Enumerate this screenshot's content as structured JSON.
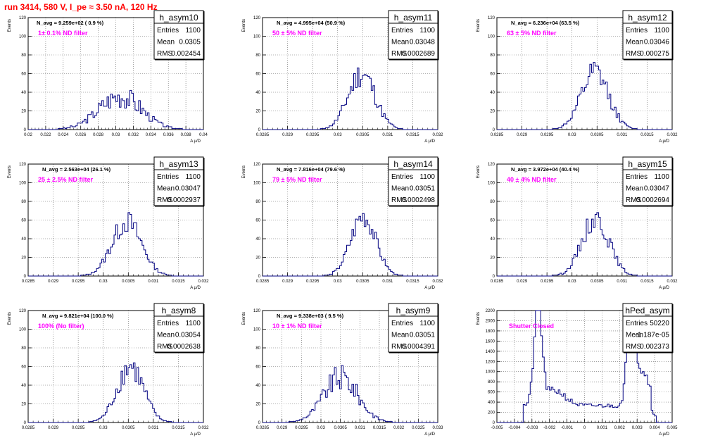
{
  "page": {
    "title": "run 3414,   580 V, I_pe ≈ 3.50 nA, 120 Hz",
    "title_color": "#ff0000",
    "ylabel": "Events",
    "xlabel": "A μ/D",
    "hist_color": "#000080",
    "note_color": "#ff00ff",
    "stats_labels": [
      "Entries",
      "Mean",
      "RMS"
    ]
  },
  "chart_data": [
    {
      "type": "histogram",
      "name": "h_asym10",
      "navg": "N_avg = 9.259e+02 ( 0.9 %)",
      "note": "1± 0.1% ND filter",
      "stats": [
        "1100",
        "0.0305",
        "0.002454"
      ],
      "xlim": [
        0.02,
        0.04
      ],
      "xticks": [
        0.02,
        0.022,
        0.024,
        0.026,
        0.028,
        0.03,
        0.032,
        0.034,
        0.036,
        0.038,
        0.04
      ],
      "xticklabels": [
        "0.02",
        "0.022",
        "0.024",
        "0.026",
        "0.028",
        "0.03",
        "0.032",
        "0.034",
        "0.036",
        "0.038",
        "0.04"
      ],
      "ylim": [
        0,
        120
      ],
      "yticks": [
        0,
        20,
        40,
        60,
        80,
        100,
        120
      ],
      "dist": {
        "mean": 0.0305,
        "rms": 0.002454,
        "peak": 36,
        "seed": 3,
        "noise": 0.35
      }
    },
    {
      "type": "histogram",
      "name": "h_asym11",
      "navg": "N_avg = 4.995e+04 (50.9 %)",
      "note": "50 ± 5% ND filter",
      "stats": [
        "1100",
        "0.03048",
        "0.0002689"
      ],
      "xlim": [
        0.0285,
        0.032
      ],
      "xticks": [
        0.0285,
        0.029,
        0.0295,
        0.03,
        0.0305,
        0.031,
        0.0315,
        0.032
      ],
      "xticklabels": [
        "0.0285",
        "0.029",
        "0.0295",
        "0.03",
        "0.0305",
        "0.031",
        "0.0315",
        "0.032"
      ],
      "ylim": [
        0,
        120
      ],
      "yticks": [
        0,
        20,
        40,
        60,
        80,
        100,
        120
      ],
      "dist": {
        "mean": 0.03048,
        "rms": 0.0002689,
        "peak": 60,
        "seed": 11,
        "noise": 0.25
      }
    },
    {
      "type": "histogram",
      "name": "h_asym12",
      "navg": "N_avg = 6.236e+04 (63.5 %)",
      "note": "63 ± 5% ND filter",
      "stats": [
        "1100",
        "0.03046",
        "0.000275"
      ],
      "xlim": [
        0.0285,
        0.032
      ],
      "xticks": [
        0.0285,
        0.029,
        0.0295,
        0.03,
        0.0305,
        0.031,
        0.0315,
        0.032
      ],
      "xticklabels": [
        "0.0285",
        "0.029",
        "0.0295",
        "0.03",
        "0.0305",
        "0.031",
        "0.0315",
        "0.032"
      ],
      "ylim": [
        0,
        120
      ],
      "yticks": [
        0,
        20,
        40,
        60,
        80,
        100,
        120
      ],
      "dist": {
        "mean": 0.03046,
        "rms": 0.000275,
        "peak": 60,
        "seed": 12,
        "noise": 0.25
      }
    },
    {
      "type": "histogram",
      "name": "h_asym13",
      "navg": "N_avg = 2.563e+04 (26.1 %)",
      "note": "25 ± 2.5% ND filter",
      "stats": [
        "1100",
        "0.03047",
        "0.0002937"
      ],
      "xlim": [
        0.0285,
        0.032
      ],
      "xticks": [
        0.0285,
        0.029,
        0.0295,
        0.03,
        0.0305,
        0.031,
        0.0315,
        0.032
      ],
      "xticklabels": [
        "0.0285",
        "0.029",
        "0.0295",
        "0.03",
        "0.0305",
        "0.031",
        "0.0315",
        "0.032"
      ],
      "ylim": [
        0,
        120
      ],
      "yticks": [
        0,
        20,
        40,
        60,
        80,
        100,
        120
      ],
      "dist": {
        "mean": 0.03047,
        "rms": 0.0002937,
        "peak": 58,
        "seed": 13,
        "noise": 0.22
      }
    },
    {
      "type": "histogram",
      "name": "h_asym14",
      "navg": "N_avg = 7.816e+04 (79.6 %)",
      "note": "79 ± 5% ND filter",
      "stats": [
        "1100",
        "0.03051",
        "0.0002498"
      ],
      "xlim": [
        0.0285,
        0.032
      ],
      "xticks": [
        0.0285,
        0.029,
        0.0295,
        0.03,
        0.0305,
        0.031,
        0.0315,
        0.032
      ],
      "xticklabels": [
        "0.0285",
        "0.029",
        "0.0295",
        "0.03",
        "0.0305",
        "0.031",
        "0.0315",
        "0.032"
      ],
      "ylim": [
        0,
        120
      ],
      "yticks": [
        0,
        20,
        40,
        60,
        80,
        100,
        120
      ],
      "dist": {
        "mean": 0.03051,
        "rms": 0.0002498,
        "peak": 64,
        "seed": 14,
        "noise": 0.2
      }
    },
    {
      "type": "histogram",
      "name": "h_asym15",
      "navg": "N_avg = 3.972e+04 (40.4 %)",
      "note": "40 ± 4% ND filter",
      "stats": [
        "1100",
        "0.03047",
        "0.0002694"
      ],
      "xlim": [
        0.0285,
        0.032
      ],
      "xticks": [
        0.0285,
        0.029,
        0.0295,
        0.03,
        0.0305,
        0.031,
        0.0315,
        0.032
      ],
      "xticklabels": [
        "0.0285",
        "0.029",
        "0.0295",
        "0.03",
        "0.0305",
        "0.031",
        "0.0315",
        "0.032"
      ],
      "ylim": [
        0,
        120
      ],
      "yticks": [
        0,
        20,
        40,
        60,
        80,
        100,
        120
      ],
      "dist": {
        "mean": 0.03047,
        "rms": 0.0002694,
        "peak": 62,
        "seed": 15,
        "noise": 0.22
      }
    },
    {
      "type": "histogram",
      "name": "h_asym8",
      "navg": "N_avg = 9.821e+04 (100.0 %)",
      "note": "100% (No filter)",
      "stats": [
        "1100",
        "0.03054",
        "0.0002638"
      ],
      "xlim": [
        0.0285,
        0.032
      ],
      "xticks": [
        0.0285,
        0.029,
        0.0295,
        0.03,
        0.0305,
        0.031,
        0.0315,
        0.032
      ],
      "xticklabels": [
        "0.0285",
        "0.029",
        "0.0295",
        "0.03",
        "0.0305",
        "0.031",
        "0.0315",
        "0.032"
      ],
      "ylim": [
        0,
        120
      ],
      "yticks": [
        0,
        20,
        40,
        60,
        80,
        100,
        120
      ],
      "dist": {
        "mean": 0.03054,
        "rms": 0.0002638,
        "peak": 60,
        "seed": 8,
        "noise": 0.25
      }
    },
    {
      "type": "histogram",
      "name": "h_asym9",
      "navg": "N_avg = 9.338e+03 ( 9.5 %)",
      "note": "10 ± 1% ND filter",
      "stats": [
        "1100",
        "0.03051",
        "0.0004391"
      ],
      "xlim": [
        0.0285,
        0.033
      ],
      "xticks": [
        0.0285,
        0.029,
        0.0295,
        0.03,
        0.0305,
        0.031,
        0.0315,
        0.032,
        0.0325,
        0.033
      ],
      "xticklabels": [
        "0.0285",
        "0.029",
        "0.0295",
        "0.03",
        "0.0305",
        "0.031",
        "0.0315",
        "0.032",
        "0.0325",
        "0.033"
      ],
      "ylim": [
        0,
        120
      ],
      "yticks": [
        0,
        20,
        40,
        60,
        80,
        100,
        120
      ],
      "dist": {
        "mean": 0.03051,
        "rms": 0.0004391,
        "peak": 48,
        "seed": 9,
        "noise": 0.3
      }
    },
    {
      "type": "histogram",
      "name": "hPed_asym",
      "navg": "",
      "note": "Shutter Closed",
      "stats": [
        "50220",
        "-1.187e-05",
        "0.002373"
      ],
      "xlim": [
        -0.005,
        0.005
      ],
      "xticks": [
        -0.005,
        -0.004,
        -0.003,
        -0.002,
        -0.001,
        0,
        0.001,
        0.002,
        0.003,
        0.004,
        0.005
      ],
      "xticklabels": [
        "-0.005",
        "-0.004",
        "-0.003",
        "-0.002",
        "-0.001",
        "0",
        "0.001",
        "0.002",
        "0.003",
        "0.004",
        "0.005"
      ],
      "ylim": [
        0,
        2200
      ],
      "yticks": [
        0,
        200,
        400,
        600,
        800,
        1000,
        1200,
        1400,
        1600,
        1800,
        2000,
        2200
      ],
      "dist": {
        "pedestal": true,
        "seed": 21,
        "noise": 0.12
      }
    }
  ]
}
